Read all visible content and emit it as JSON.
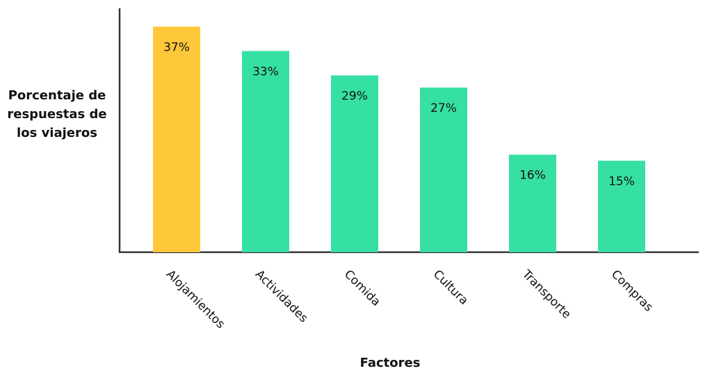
{
  "chart_data": {
    "type": "bar",
    "y_label": "Porcentaje de respuestas de los viajeros",
    "x_label": "Factores",
    "categories": [
      "Alojamientos",
      "Actividades",
      "Comida",
      "Cultura",
      "Transporte",
      "Compras"
    ],
    "values": [
      37,
      33,
      29,
      27,
      16,
      15
    ],
    "value_labels": [
      "37%",
      "33%",
      "29%",
      "27%",
      "16%",
      "15%"
    ],
    "colors": [
      "#ffc83a",
      "#36e0a2",
      "#36e0a2",
      "#36e0a2",
      "#36e0a2",
      "#36e0a2"
    ],
    "ylim": [
      0,
      40
    ]
  }
}
